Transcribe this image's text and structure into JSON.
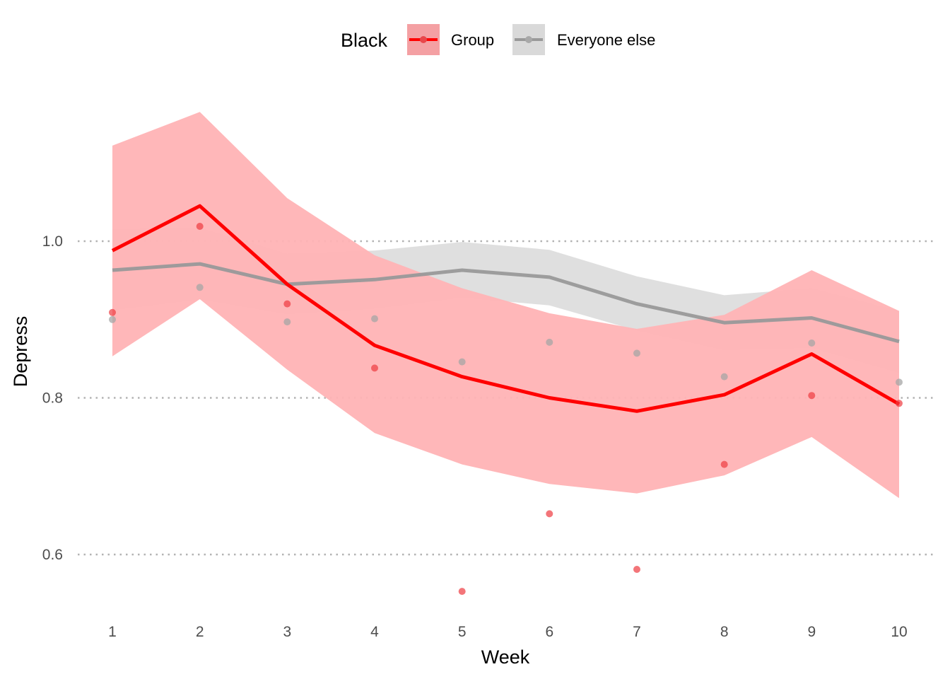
{
  "chart_data": {
    "type": "line",
    "xlabel": "Week",
    "ylabel": "Depress",
    "x": [
      1,
      2,
      3,
      4,
      5,
      6,
      7,
      8,
      9,
      10
    ],
    "x_tick_labels": [
      "1",
      "2",
      "3",
      "4",
      "5",
      "6",
      "7",
      "8",
      "9",
      "10"
    ],
    "y_ticks": [
      0.6,
      0.8,
      1.0
    ],
    "y_tick_labels": [
      "0.6",
      "0.8",
      "1.0"
    ],
    "xlim": [
      0.9,
      10.45
    ],
    "ylim": [
      0.53,
      1.18
    ],
    "grid": "horizontal dotted major lines",
    "legend": {
      "title": "Black",
      "placement": "top",
      "entries": [
        "Group",
        "Everyone else"
      ]
    },
    "series": [
      {
        "name": "Group",
        "color": "#ff0000",
        "band_color": "#ffb3b5",
        "line": [
          0.988,
          1.045,
          0.945,
          0.867,
          0.827,
          0.8,
          0.783,
          0.804,
          0.856,
          0.792
        ],
        "band_lower": [
          0.853,
          0.926,
          0.836,
          0.755,
          0.715,
          0.69,
          0.678,
          0.701,
          0.75,
          0.672
        ],
        "band_upper": [
          1.122,
          1.165,
          1.055,
          0.982,
          0.94,
          0.908,
          0.888,
          0.906,
          0.963,
          0.911
        ],
        "points": [
          0.909,
          1.019,
          0.92,
          0.838,
          0.553,
          0.652,
          0.581,
          0.715,
          0.803,
          0.793
        ]
      },
      {
        "name": "Everyone else",
        "color": "#999999",
        "band_color": "#d9d9d9",
        "line": [
          0.963,
          0.971,
          0.945,
          0.951,
          0.963,
          0.954,
          0.92,
          0.896,
          0.902,
          0.872
        ],
        "band_lower": [
          0.912,
          0.926,
          0.907,
          0.914,
          0.928,
          0.918,
          0.886,
          0.861,
          0.864,
          0.832
        ],
        "band_upper": [
          1.015,
          1.017,
          0.984,
          0.988,
          0.999,
          0.989,
          0.955,
          0.931,
          0.94,
          0.911
        ],
        "points": [
          0.9,
          0.941,
          0.897,
          0.901,
          0.846,
          0.871,
          0.857,
          0.827,
          0.87,
          0.82
        ]
      }
    ]
  }
}
